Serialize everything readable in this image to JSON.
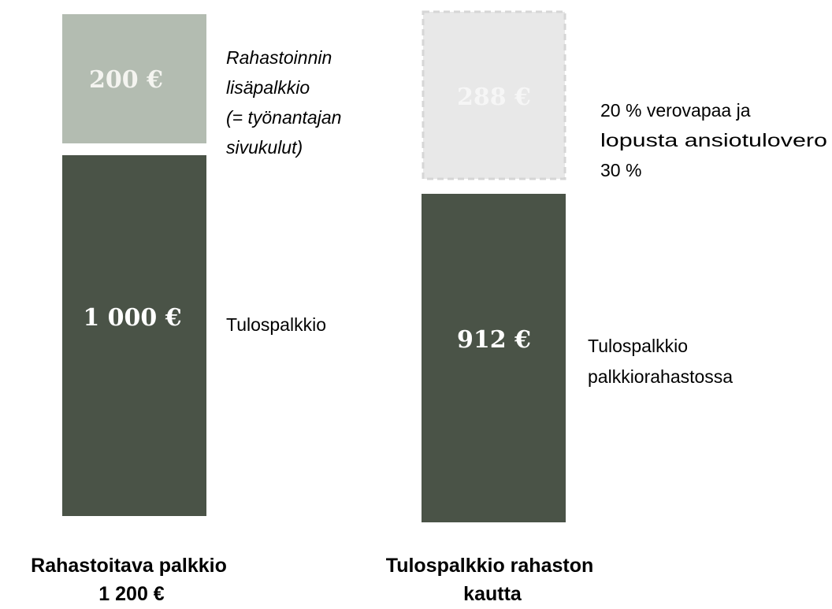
{
  "columns": [
    {
      "top": {
        "amount": "200 €",
        "note": [
          "Rahastoinnin",
          "lisäpalkkio",
          "(= työnantajan",
          "sivukulut)"
        ]
      },
      "bottom": {
        "amount": "1 000 €",
        "note": [
          "Tulospalkkio"
        ]
      },
      "label": [
        "Rahastoitava palkkio",
        "1 200 €"
      ]
    },
    {
      "top": {
        "amount": "288 €",
        "note": [
          "20 % verovapaa ja",
          "lopusta ansiotulovero",
          "30 %"
        ]
      },
      "bottom": {
        "amount": "912 €",
        "note": [
          "Tulospalkkio",
          "palkkiorahastossa"
        ]
      },
      "label": [
        "Tulospalkkio rahaston",
        "kautta"
      ]
    }
  ]
}
